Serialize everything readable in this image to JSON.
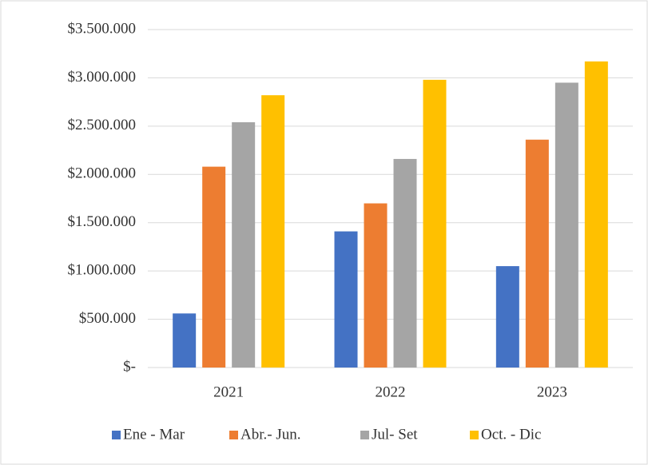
{
  "chart_data": {
    "type": "bar",
    "categories": [
      "2021",
      "2022",
      "2023"
    ],
    "series": [
      {
        "name": "Ene - Mar",
        "color": "#4472c4",
        "values": [
          560000,
          1410000,
          1050000
        ]
      },
      {
        "name": "Abr.- Jun.",
        "color": "#ed7d31",
        "values": [
          2080000,
          1700000,
          2360000
        ]
      },
      {
        "name": "Jul- Set",
        "color": "#a5a5a5",
        "values": [
          2540000,
          2160000,
          2950000
        ]
      },
      {
        "name": "Oct. - Dic",
        "color": "#ffc000",
        "values": [
          2820000,
          2980000,
          3170000
        ]
      }
    ],
    "ylim": [
      0,
      3500000
    ],
    "yticks": [
      {
        "value": 0,
        "label": "$-"
      },
      {
        "value": 500000,
        "label": "$500.000"
      },
      {
        "value": 1000000,
        "label": "$1.000.000"
      },
      {
        "value": 1500000,
        "label": "$1.500.000"
      },
      {
        "value": 2000000,
        "label": "$2.000.000"
      },
      {
        "value": 2500000,
        "label": "$2.500.000"
      },
      {
        "value": 3000000,
        "label": "$3.000.000"
      },
      {
        "value": 3500000,
        "label": "$3.500.000"
      }
    ],
    "grid": true,
    "legend": "bottom"
  }
}
